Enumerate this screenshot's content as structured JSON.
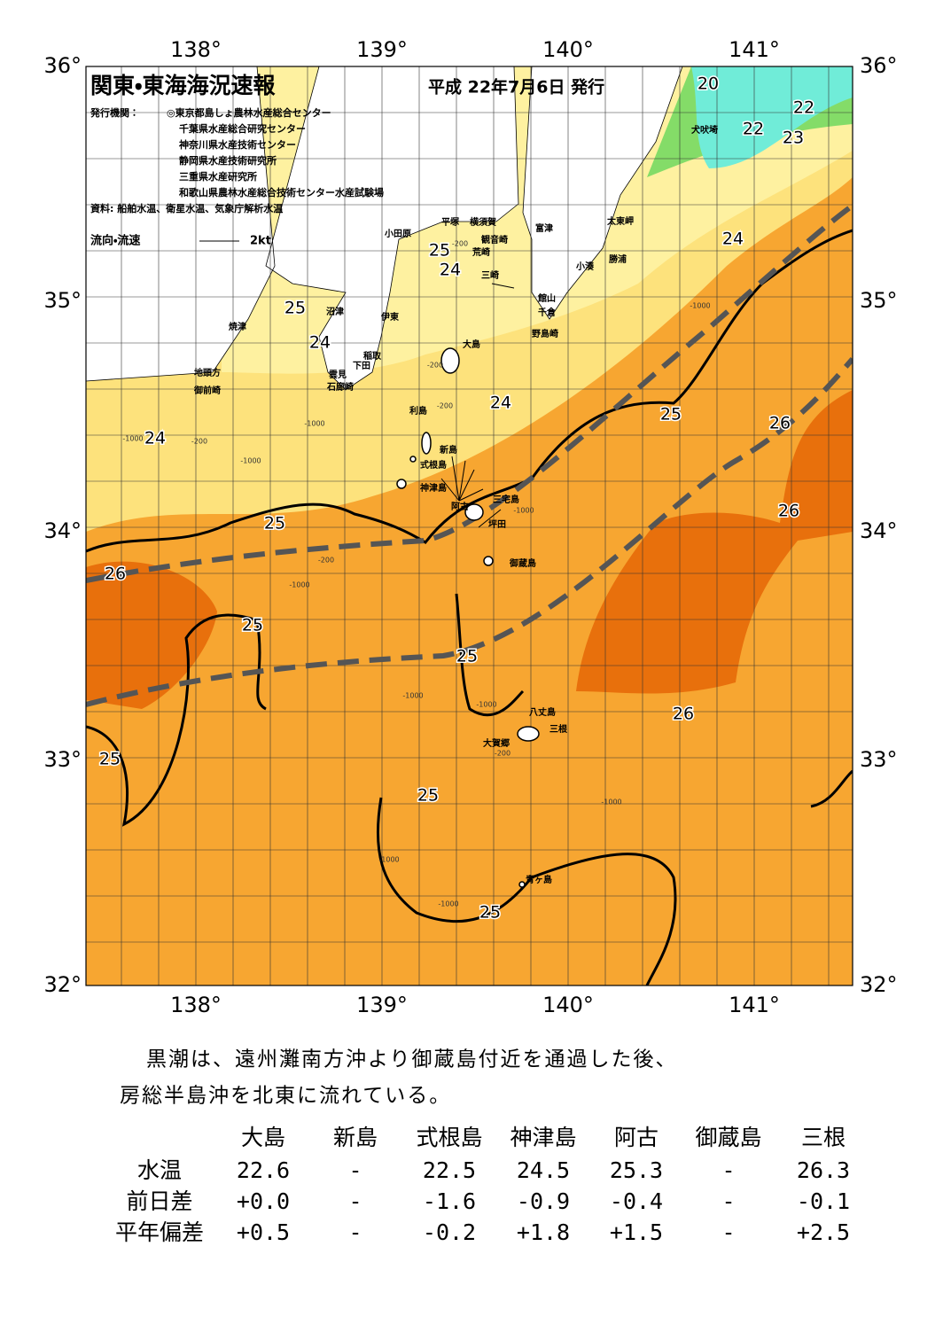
{
  "header": {
    "title": "関東・東海海況速報",
    "date": "平成 22年7月6日 発行",
    "issuers_label": "発行機関：",
    "issuers": [
      "◎東京都島しょ農林水産総合センター",
      "千葉県水産総合研究センター",
      "神奈川県水産技術センター",
      "静岡県水産技術研究所",
      "三重県水産研究所",
      "和歌山県農林水産総合技術センター水産試験場"
    ],
    "source": "資料: 船舶水温、衛星水温、気象庁解析水温",
    "current_legend": "流向・流速",
    "current_scale": "2kt"
  },
  "map": {
    "lon_labels": [
      "138°",
      "139°",
      "140°",
      "141°"
    ],
    "lat_labels": [
      "36°",
      "35°",
      "34°",
      "33°",
      "32°"
    ],
    "places": [
      "犬吠埼",
      "太東岬",
      "勝浦",
      "小湊",
      "富津",
      "館山",
      "千倉",
      "野島崎",
      "横須賀",
      "観音崎",
      "平塚",
      "荒崎",
      "三崎",
      "小田原",
      "大島",
      "沼津",
      "伊東",
      "焼津",
      "稲取",
      "下田",
      "雲見",
      "石廊崎",
      "地頭方",
      "御前崎",
      "利島",
      "新島",
      "式根島",
      "神津島",
      "三宅島",
      "阿古",
      "坪田",
      "御蔵島",
      "八丈島",
      "三根",
      "大賀郷",
      "青ヶ島"
    ],
    "isotherm_labels": [
      20,
      22,
      22,
      23,
      24,
      25,
      24,
      25,
      24,
      24,
      25,
      26,
      24,
      26,
      25,
      26,
      25,
      25,
      26,
      25,
      25,
      25
    ],
    "depth_labels": [
      -200,
      -200,
      -200,
      -200,
      -200,
      -200,
      -1000,
      -1000,
      -1000,
      -1000,
      -1000,
      -1000,
      -1000,
      -1000,
      -1000,
      -1000,
      -1000
    ]
  },
  "summary": [
    "黒潮は、遠州灘南方沖より御蔵島付近を通過した後、",
    "房総半島沖を北東に流れている。"
  ],
  "table": {
    "header": [
      "大島",
      "新島",
      "式根島",
      "神津島",
      "阿古",
      "御蔵島",
      "三根"
    ],
    "rows": [
      [
        "水温",
        "22.6",
        "-",
        "22.5",
        "24.5",
        "25.3",
        "-",
        "26.3"
      ],
      [
        "前日差",
        "+0.0",
        "-",
        "-1.6",
        "-0.9",
        "-0.4",
        "-",
        "-0.1"
      ],
      [
        "平年偏差",
        "+0.5",
        "-",
        "-0.2",
        "+1.8",
        "+1.5",
        "-",
        "+2.5"
      ]
    ]
  }
}
